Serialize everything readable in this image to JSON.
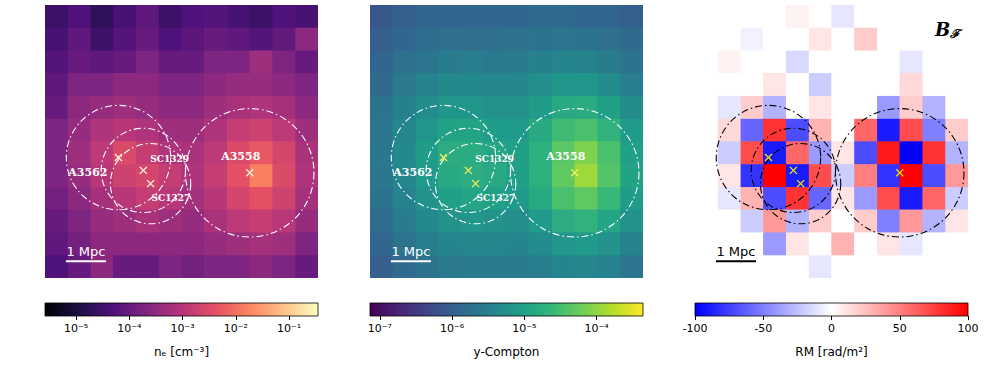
{
  "chart_data": [
    {
      "type": "heatmap",
      "xlim": [
        0,
        6.8
      ],
      "ylim": [
        0,
        6.8
      ],
      "tick_labels": false,
      "x": [
        0.28,
        0.85,
        1.42,
        1.98,
        2.55,
        3.12,
        3.68,
        4.25,
        4.82,
        5.38,
        5.95,
        6.52
      ],
      "y": [
        6.52,
        5.95,
        5.38,
        4.82,
        4.25,
        3.68,
        3.12,
        2.55,
        1.98,
        1.42,
        0.85,
        0.28
      ],
      "cells": [
        [
          3e-05,
          5e-05,
          2e-05,
          4e-05,
          8e-05,
          3e-05,
          5e-05,
          6e-05,
          4e-05,
          3e-05,
          5e-05,
          4e-05
        ],
        [
          4e-05,
          8e-05,
          3e-05,
          6e-05,
          0.0001,
          5e-05,
          7e-05,
          0.0001,
          8e-05,
          6e-05,
          9e-05,
          0.0003
        ],
        [
          6e-05,
          0.0001,
          8e-05,
          0.0001,
          0.0002,
          0.0001,
          0.0001,
          0.0002,
          0.0002,
          0.0005,
          0.0002,
          0.0001
        ],
        [
          8e-05,
          0.0002,
          0.0002,
          0.0003,
          0.0003,
          0.0002,
          0.0002,
          0.0003,
          0.0004,
          0.0004,
          0.0003,
          0.0002
        ],
        [
          0.0001,
          0.0003,
          0.0004,
          0.0005,
          0.0004,
          0.0003,
          0.0003,
          0.0005,
          0.0007,
          0.0008,
          0.0006,
          0.0003
        ],
        [
          0.0002,
          0.0004,
          0.0008,
          0.001,
          0.0008,
          0.0005,
          0.0005,
          0.0008,
          0.0015,
          0.002,
          0.0012,
          0.0005
        ],
        [
          0.0002,
          0.0005,
          0.0012,
          0.003,
          0.0015,
          0.0008,
          0.0007,
          0.0012,
          0.003,
          0.005,
          0.0025,
          0.0007
        ],
        [
          0.0002,
          0.0004,
          0.001,
          0.002,
          0.0025,
          0.0015,
          0.0008,
          0.0015,
          0.004,
          0.015,
          0.003,
          0.0008
        ],
        [
          0.00015,
          0.0003,
          0.0006,
          0.001,
          0.0015,
          0.001,
          0.0006,
          0.001,
          0.0025,
          0.004,
          0.002,
          0.0006
        ],
        [
          0.0001,
          0.0002,
          0.0004,
          0.0005,
          0.0007,
          0.0005,
          0.0004,
          0.0007,
          0.0012,
          0.0015,
          0.001,
          0.0004
        ],
        [
          8e-05,
          0.00015,
          0.0003,
          0.0003,
          0.0003,
          0.0003,
          0.0003,
          0.0004,
          0.0005,
          0.0006,
          0.0005,
          0.0002
        ],
        [
          5e-05,
          0.0001,
          0.0003,
          0.0001,
          0.0001,
          0.0002,
          0.00015,
          0.0002,
          0.0002,
          0.0003,
          0.0002,
          0.0001
        ]
      ],
      "colorbar": {
        "label": "nₑ [cm⁻³]",
        "log": true,
        "color": "magma",
        "range": [
          2.6e-06,
          0.35
        ],
        "ticks": [
          {
            "value": 1e-05,
            "label": "10⁻⁵"
          },
          {
            "value": 0.0001,
            "label": "10⁻⁴"
          },
          {
            "value": 0.001,
            "label": "10⁻³"
          },
          {
            "value": 0.01,
            "label": "10⁻²"
          },
          {
            "value": 0.1,
            "label": "10⁻¹"
          }
        ]
      },
      "clusters": [
        {
          "name": "A3562",
          "x": 1.83,
          "y": 3.0,
          "radius": 1.3
        },
        {
          "name": "SC1329",
          "x": 2.45,
          "y": 2.68,
          "radius": 1.05
        },
        {
          "name": "SC1327",
          "x": 2.63,
          "y": 2.35,
          "radius": 1.0
        },
        {
          "name": "A3558",
          "x": 5.1,
          "y": 2.62,
          "radius": 1.6
        }
      ],
      "scale_bar": {
        "length": 1,
        "label": "1 Mpc"
      }
    },
    {
      "type": "heatmap",
      "xlim": [
        0,
        6.8
      ],
      "ylim": [
        0,
        6.8
      ],
      "tick_labels": false,
      "x": [
        0.28,
        0.85,
        1.42,
        1.98,
        2.55,
        3.12,
        3.68,
        4.25,
        4.82,
        5.38,
        5.95,
        6.52
      ],
      "y": [
        6.52,
        5.95,
        5.38,
        4.82,
        4.25,
        3.68,
        3.12,
        2.55,
        1.98,
        1.42,
        0.85,
        0.28
      ],
      "cells": [
        [
          8e-07,
          1e-06,
          1.2e-06,
          1.2e-06,
          1.3e-06,
          1.3e-06,
          1.3e-06,
          1.4e-06,
          1.4e-06,
          1.3e-06,
          1.2e-06,
          1e-06
        ],
        [
          1e-06,
          1.3e-06,
          1.6e-06,
          1.8e-06,
          1.8e-06,
          1.8e-06,
          1.9e-06,
          2e-06,
          2.2e-06,
          2e-06,
          1.8e-06,
          1.5e-06
        ],
        [
          1.2e-06,
          1.8e-06,
          2.2e-06,
          2.8e-06,
          3e-06,
          2.6e-06,
          2.8e-06,
          3.2e-06,
          3.8e-06,
          3.6e-06,
          2.8e-06,
          2e-06
        ],
        [
          1.5e-06,
          2.5e-06,
          3.5e-06,
          4.5e-06,
          4.5e-06,
          4e-06,
          4.2e-06,
          5.5e-06,
          7e-06,
          7e-06,
          5e-06,
          3e-06
        ],
        [
          2e-06,
          3.2e-06,
          5e-06,
          7e-06,
          7e-06,
          6e-06,
          6e-06,
          9e-06,
          1.4e-05,
          1.5e-05,
          1e-05,
          5e-06
        ],
        [
          2.2e-06,
          4e-06,
          7e-06,
          1.1e-05,
          1.1e-05,
          9e-06,
          8e-06,
          1.4e-05,
          2.8e-05,
          3.5e-05,
          2e-05,
          8e-06
        ],
        [
          2.4e-06,
          4.5e-06,
          9e-06,
          1.6e-05,
          1.5e-05,
          1.2e-05,
          1e-05,
          1.8e-05,
          4.5e-05,
          8e-05,
          3.5e-05,
          1e-05
        ],
        [
          2.3e-06,
          4.2e-06,
          8e-06,
          1.4e-05,
          1.6e-05,
          1.4e-05,
          1e-05,
          1.8e-05,
          5e-05,
          0.00012,
          4e-05,
          1.1e-05
        ],
        [
          2e-06,
          3.5e-06,
          6e-06,
          1e-05,
          1.2e-05,
          1e-05,
          8e-06,
          1.4e-05,
          3.5e-05,
          5e-05,
          2.5e-05,
          9e-06
        ],
        [
          1.6e-06,
          2.8e-06,
          4.5e-06,
          6e-06,
          7e-06,
          6e-06,
          5.5e-06,
          8e-06,
          1.6e-05,
          2e-05,
          1.2e-05,
          6e-06
        ],
        [
          1.3e-06,
          2e-06,
          3e-06,
          3.8e-06,
          4.2e-06,
          4e-06,
          3.8e-06,
          5e-06,
          7e-06,
          8e-06,
          6e-06,
          3.5e-06
        ],
        [
          1e-06,
          1.5e-06,
          2e-06,
          2.5e-06,
          2.8e-06,
          2.8e-06,
          2.7e-06,
          3e-06,
          3.8e-06,
          4e-06,
          3.5e-06,
          2.2e-06
        ]
      ],
      "colorbar": {
        "label": "y-Compton",
        "log": true,
        "color": "viridis",
        "range": [
          7.3e-08,
          0.00044
        ],
        "ticks": [
          {
            "value": 1e-07,
            "label": "10⁻⁷"
          },
          {
            "value": 1e-06,
            "label": "10⁻⁶"
          },
          {
            "value": 1e-05,
            "label": "10⁻⁵"
          },
          {
            "value": 0.0001,
            "label": "10⁻⁴"
          }
        ]
      },
      "clusters": [
        {
          "name": "A3562",
          "x": 1.83,
          "y": 3.0,
          "radius": 1.3
        },
        {
          "name": "SC1329",
          "x": 2.45,
          "y": 2.68,
          "radius": 1.05
        },
        {
          "name": "SC1327",
          "x": 2.63,
          "y": 2.35,
          "radius": 1.0
        },
        {
          "name": "A3558",
          "x": 5.1,
          "y": 2.62,
          "radius": 1.6
        }
      ],
      "scale_bar": {
        "length": 1,
        "label": "1 Mpc"
      }
    },
    {
      "type": "heatmap",
      "xlim": [
        0,
        6.8
      ],
      "ylim": [
        0,
        6.8
      ],
      "tick_labels": false,
      "x": [
        0.28,
        0.85,
        1.42,
        1.98,
        2.55,
        3.12,
        3.68,
        4.25,
        4.82,
        5.38,
        5.95,
        6.52
      ],
      "y": [
        6.52,
        5.95,
        5.38,
        4.82,
        4.25,
        3.68,
        3.12,
        2.55,
        1.98,
        1.42,
        0.85,
        0.28
      ],
      "cells": [
        [
          0,
          0,
          0,
          0,
          5,
          0,
          -10,
          0,
          0,
          0,
          0,
          0
        ],
        [
          0,
          0,
          -5,
          0,
          0,
          10,
          0,
          20,
          0,
          0,
          0,
          0
        ],
        [
          0,
          5,
          0,
          0,
          -15,
          0,
          0,
          0,
          0,
          -10,
          0,
          0
        ],
        [
          0,
          0,
          0,
          10,
          0,
          -20,
          0,
          0,
          0,
          15,
          0,
          0
        ],
        [
          0,
          -10,
          20,
          -30,
          0,
          10,
          0,
          0,
          -40,
          20,
          -30,
          0
        ],
        [
          0,
          15,
          -60,
          80,
          -70,
          30,
          0,
          60,
          -90,
          70,
          -50,
          20
        ],
        [
          0,
          -20,
          70,
          -90,
          60,
          -40,
          10,
          -70,
          90,
          -100,
          80,
          -30
        ],
        [
          0,
          10,
          -80,
          100,
          -90,
          70,
          -20,
          50,
          -80,
          100,
          -70,
          40
        ],
        [
          0,
          -10,
          30,
          -70,
          80,
          -60,
          10,
          -40,
          70,
          -90,
          60,
          -20
        ],
        [
          0,
          0,
          -20,
          40,
          -30,
          20,
          0,
          20,
          -50,
          40,
          -30,
          10
        ],
        [
          0,
          0,
          0,
          -40,
          10,
          0,
          30,
          0,
          10,
          -10,
          0,
          0
        ],
        [
          0,
          0,
          0,
          0,
          0,
          -10,
          0,
          0,
          0,
          0,
          0,
          0
        ]
      ],
      "colorbar": {
        "label": "RM [rad/m²]",
        "log": false,
        "color": "bwr",
        "range": [
          -100,
          100
        ],
        "ticks": [
          -100,
          -50,
          0,
          50,
          100
        ]
      },
      "clusters": [
        {
          "x": 1.83,
          "y": 3.0,
          "radius": 1.3
        },
        {
          "x": 2.45,
          "y": 2.68,
          "radius": 1.05
        },
        {
          "x": 2.63,
          "y": 2.35,
          "radius": 1.0
        },
        {
          "x": 5.1,
          "y": 2.62,
          "radius": 1.6
        }
      ],
      "scale_bar": {
        "length": 1,
        "label": "1 Mpc"
      },
      "panel_label": {
        "text": "B",
        "subscript": "ℱ"
      }
    }
  ]
}
